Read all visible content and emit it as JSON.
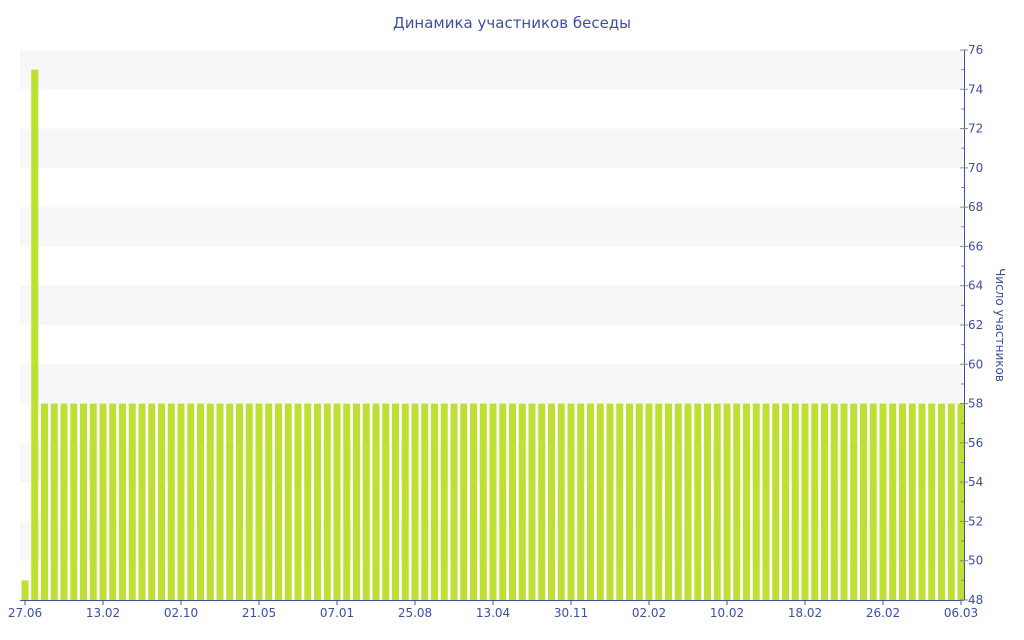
{
  "chart_data": {
    "type": "bar",
    "title": "Динамика участников беседы",
    "ylabel": "Число участников",
    "ylim": [
      48,
      76
    ],
    "y_ticks": [
      48,
      50,
      52,
      54,
      56,
      58,
      60,
      62,
      64,
      66,
      68,
      70,
      72,
      74,
      76
    ],
    "y_axis_position": "right",
    "x_tick_labels": [
      "27.06",
      "13.02",
      "02.10",
      "21.05",
      "07.01",
      "25.08",
      "13.04",
      "30.11",
      "02.02",
      "10.02",
      "18.02",
      "26.02",
      "06.03"
    ],
    "x_tick_every_n_bars": 8,
    "values": [
      49,
      75,
      58,
      58,
      58,
      58,
      58,
      58,
      58,
      58,
      58,
      58,
      58,
      58,
      58,
      58,
      58,
      58,
      58,
      58,
      58,
      58,
      58,
      58,
      58,
      58,
      58,
      58,
      58,
      58,
      58,
      58,
      58,
      58,
      58,
      58,
      58,
      58,
      58,
      58,
      58,
      58,
      58,
      58,
      58,
      58,
      58,
      58,
      58,
      58,
      58,
      58,
      58,
      58,
      58,
      58,
      58,
      58,
      58,
      58,
      58,
      58,
      58,
      58,
      58,
      58,
      58,
      58,
      58,
      58,
      58,
      58,
      58,
      58,
      58,
      58,
      58,
      58,
      58,
      58,
      58,
      58,
      58,
      58,
      58,
      58,
      58,
      58,
      58,
      58,
      58,
      58,
      58,
      58,
      58,
      58,
      58
    ],
    "grid": "alternating horizontal bands",
    "colors": {
      "bar": "#bde032",
      "axis": "#3d4f9f",
      "band": "#f7f7f7"
    }
  }
}
